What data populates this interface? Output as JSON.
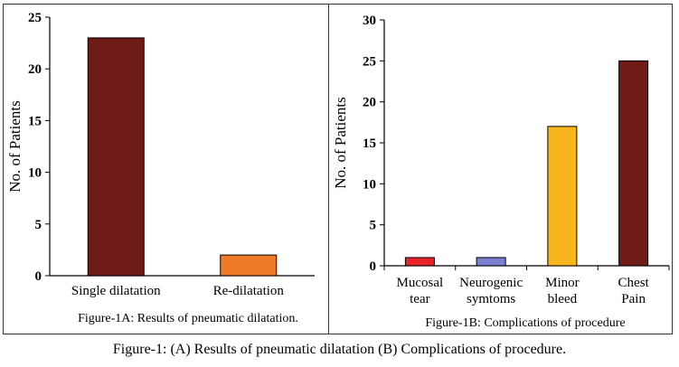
{
  "figure_caption": "Figure-1: (A) Results of pneumatic dilatation (B) Complications of procedure.",
  "chart_data": [
    {
      "type": "bar",
      "caption": "Figure-1A: Results of pneumatic dilatation.",
      "ylabel": "No. of Patients",
      "xlabel": "",
      "ylim": [
        0,
        25
      ],
      "yticks": [
        0,
        5,
        10,
        15,
        20,
        25
      ],
      "categories": [
        "Single dilatation",
        "Re-dilatation"
      ],
      "values": [
        23,
        2
      ],
      "colors": [
        "#6e1a17",
        "#f07a2a"
      ]
    },
    {
      "type": "bar",
      "caption": "Figure-1B: Complications of procedure",
      "ylabel": "No. of Patients",
      "xlabel": "",
      "ylim": [
        0,
        30
      ],
      "yticks": [
        0,
        5,
        10,
        15,
        20,
        25,
        30
      ],
      "categories": [
        [
          "Mucosal",
          "tear"
        ],
        [
          "Neurogenic",
          "symtoms"
        ],
        [
          "Minor",
          "bleed"
        ],
        [
          "Chest",
          "Pain"
        ]
      ],
      "values": [
        1,
        1,
        17,
        25
      ],
      "colors": [
        "#e8232a",
        "#7b7fd0",
        "#f8b51c",
        "#6e1a17"
      ]
    }
  ]
}
